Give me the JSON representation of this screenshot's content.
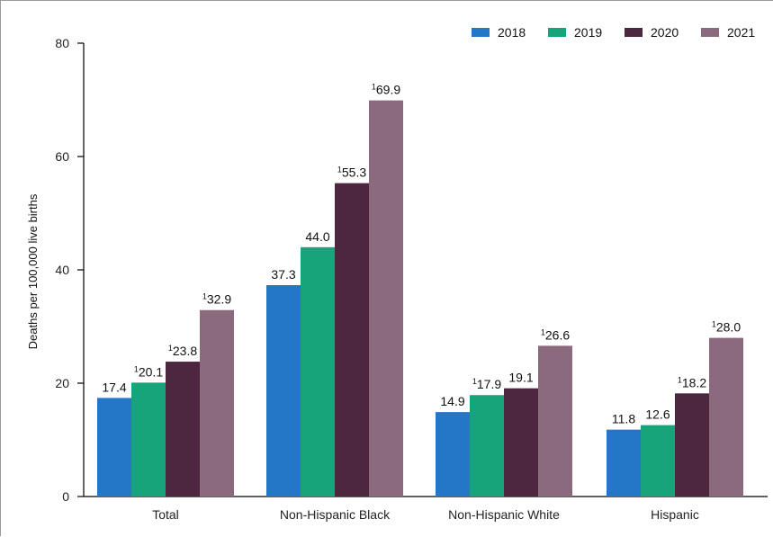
{
  "chart_data": {
    "type": "bar",
    "title": "",
    "xlabel": "",
    "ylabel": "Deaths per 100,000 live births",
    "ylim": [
      0,
      80
    ],
    "yticks": [
      "0",
      "20",
      "40",
      "60",
      "80"
    ],
    "grid": false,
    "legend_position": "top-right",
    "categories": [
      "Total",
      "Non-Hispanic Black",
      "Non-Hispanic White",
      "Hispanic"
    ],
    "series": [
      {
        "name": "2018",
        "color": "#2476c7",
        "values": [
          17.4,
          37.3,
          14.9,
          11.8
        ],
        "labels": [
          "17.4",
          "37.3",
          "14.9",
          "11.8"
        ],
        "markers": [
          "",
          "",
          "",
          ""
        ]
      },
      {
        "name": "2019",
        "color": "#16a57a",
        "values": [
          20.1,
          44.0,
          17.9,
          12.6
        ],
        "labels": [
          "20.1",
          "44.0",
          "17.9",
          "12.6"
        ],
        "markers": [
          "1",
          "",
          "1",
          ""
        ]
      },
      {
        "name": "2020",
        "color": "#4d2740",
        "values": [
          23.8,
          55.3,
          19.1,
          18.2
        ],
        "labels": [
          "23.8",
          "55.3",
          "19.1",
          "18.2"
        ],
        "markers": [
          "1",
          "1",
          "",
          "1"
        ]
      },
      {
        "name": "2021",
        "color": "#8a6a7c",
        "values": [
          32.9,
          69.9,
          26.6,
          28.0
        ],
        "labels": [
          "32.9",
          "69.9",
          "26.6",
          "28.0"
        ],
        "markers": [
          "1",
          "1",
          "1",
          "1"
        ]
      }
    ]
  }
}
